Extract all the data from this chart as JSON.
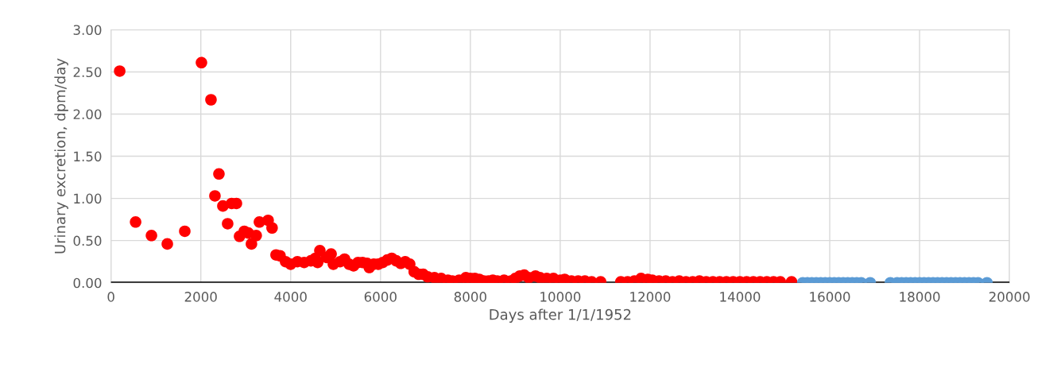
{
  "chart_data": {
    "type": "scatter",
    "xlabel": "Days after 1/1/1952",
    "ylabel": "Urinary excretion, dpm/day",
    "xlim": [
      0,
      20000
    ],
    "xticks": [
      0,
      2000,
      4000,
      6000,
      8000,
      10000,
      12000,
      14000,
      16000,
      18000,
      20000
    ],
    "ylim": [
      0,
      3
    ],
    "yticks": [
      {
        "value": 0,
        "label": "0.00"
      },
      {
        "value": 0.5,
        "label": "0.50"
      },
      {
        "value": 1,
        "label": "1.00"
      },
      {
        "value": 1.5,
        "label": "1.50"
      },
      {
        "value": 2,
        "label": "2.00"
      },
      {
        "value": 2.5,
        "label": "2.50"
      },
      {
        "value": 3,
        "label": "3.00"
      }
    ],
    "grid": true,
    "legend": false,
    "marker": "circle",
    "ref_lines": [
      {
        "axis": "y",
        "value": 0,
        "color": "#000000"
      }
    ],
    "series": [
      {
        "color": "#ff0000",
        "x": [
          194,
          548,
          901,
          1254,
          1643,
          2014,
          2226,
          2314,
          2403,
          2491,
          2597,
          2686,
          2792,
          2862,
          2968,
          3056,
          3127,
          3233,
          3304,
          3498,
          3586,
          3675,
          3763,
          3887,
          4000,
          4150,
          4300,
          4450,
          4550,
          4600,
          4650,
          4800,
          4900,
          4950,
          5100,
          5200,
          5300,
          5400,
          5500,
          5600,
          5700,
          5750,
          5850,
          5950,
          6050,
          6150,
          6250,
          6350,
          6450,
          6550,
          6650,
          6750,
          6850,
          6950,
          7050,
          7200,
          7350,
          7500,
          7600,
          7750,
          7900,
          8000,
          8100,
          8200,
          8300,
          8400,
          8500,
          8600,
          8750,
          8900,
          9000,
          9100,
          9200,
          9300,
          9450,
          9550,
          9700,
          9850,
          10000,
          10100,
          10250,
          10400,
          10550,
          10700,
          10900,
          11350,
          11500,
          11650,
          11800,
          11950,
          12050,
          12200,
          12350,
          12500,
          12650,
          12800,
          12950,
          13100,
          13250,
          13400,
          13550,
          13700,
          13850,
          14000,
          14150,
          14300,
          14450,
          14600,
          14750,
          14900,
          15150
        ],
        "values": [
          2.51,
          0.72,
          0.56,
          0.46,
          0.61,
          2.61,
          2.17,
          1.03,
          1.29,
          0.91,
          0.7,
          0.94,
          0.94,
          0.55,
          0.61,
          0.59,
          0.46,
          0.56,
          0.72,
          0.74,
          0.65,
          0.33,
          0.32,
          0.25,
          0.22,
          0.25,
          0.24,
          0.26,
          0.29,
          0.24,
          0.38,
          0.3,
          0.34,
          0.22,
          0.25,
          0.28,
          0.22,
          0.2,
          0.24,
          0.24,
          0.23,
          0.18,
          0.22,
          0.22,
          0.24,
          0.27,
          0.29,
          0.26,
          0.23,
          0.25,
          0.22,
          0.13,
          0.1,
          0.1,
          0.07,
          0.06,
          0.05,
          0.03,
          0.02,
          0.03,
          0.06,
          0.05,
          0.05,
          0.04,
          0.02,
          0.02,
          0.03,
          0.02,
          0.03,
          0.02,
          0.05,
          0.08,
          0.09,
          0.06,
          0.08,
          0.06,
          0.05,
          0.05,
          0.03,
          0.04,
          0.02,
          0.02,
          0.02,
          0.01,
          0.01,
          0.01,
          0.01,
          0.02,
          0.05,
          0.04,
          0.03,
          0.02,
          0.02,
          0.01,
          0.02,
          0.01,
          0.01,
          0.02,
          0.01,
          0.01,
          0.01,
          0.01,
          0.01,
          0.01,
          0.01,
          0.01,
          0.01,
          0.01,
          0.01,
          0.01,
          0.01
        ]
      },
      {
        "color": "#5b9bd5",
        "x": [
          15400,
          15500,
          15600,
          15700,
          15800,
          15900,
          16000,
          16100,
          16200,
          16300,
          16400,
          16500,
          16600,
          16700,
          16900,
          17350,
          17500,
          17600,
          17700,
          17800,
          17900,
          18000,
          18100,
          18200,
          18300,
          18400,
          18500,
          18600,
          18700,
          18800,
          18900,
          19000,
          19100,
          19200,
          19300,
          19500
        ],
        "values": [
          0,
          0,
          0,
          0,
          0,
          0,
          0,
          0,
          0,
          0,
          0,
          0,
          0,
          0,
          0,
          0,
          0,
          0,
          0,
          0,
          0,
          0,
          0,
          0,
          0,
          0,
          0,
          0,
          0,
          0,
          0,
          0,
          0,
          0,
          0,
          0
        ]
      }
    ]
  }
}
